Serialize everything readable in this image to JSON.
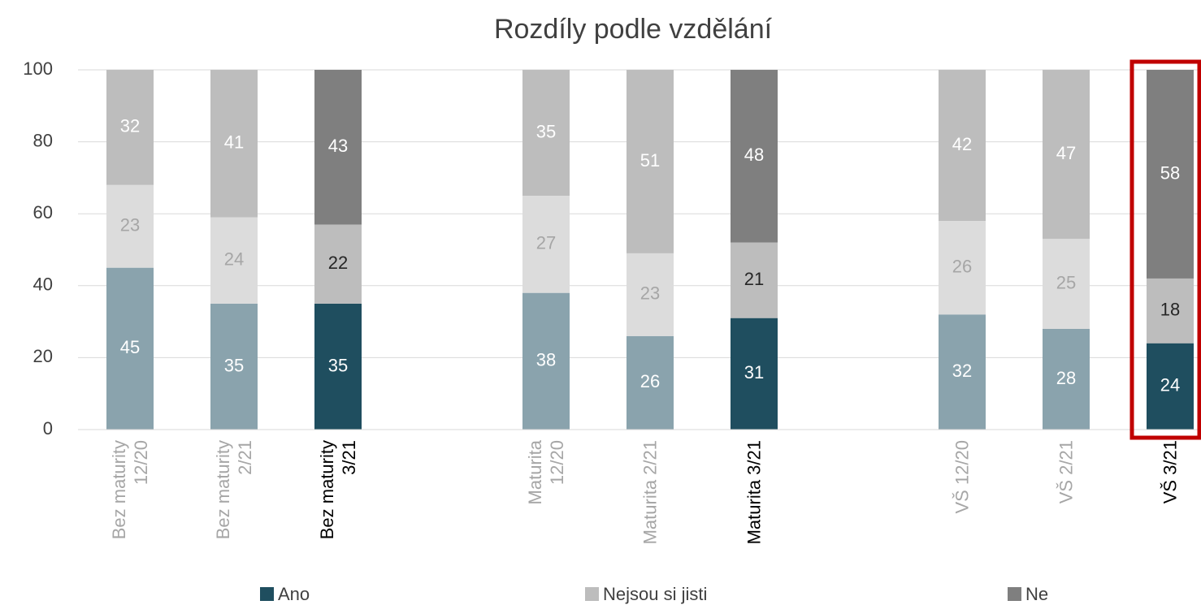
{
  "chart_data": {
    "type": "stacked_bar",
    "title": "Rozdíly podle vzdělání",
    "categories": [
      "Bez maturity 12/20",
      "Bez maturity 2/21",
      "Bez maturity 3/21",
      null,
      "Maturita 12/20",
      "Maturita 2/21",
      "Maturita 3/21",
      null,
      "VŠ 12/20",
      "VŠ 2/21",
      "VŠ 3/21"
    ],
    "series": [
      {
        "name": "Ano",
        "color": "#1f4e5f",
        "colors": [
          "#8aa3ad",
          "#8aa3ad",
          "#1f4e5f",
          null,
          "#8aa3ad",
          "#8aa3ad",
          "#1f4e5f",
          null,
          "#8aa3ad",
          "#8aa3ad",
          "#1f4e5f"
        ],
        "values": [
          45,
          35,
          35,
          null,
          38,
          26,
          31,
          null,
          32,
          28,
          24
        ]
      },
      {
        "name": "Nejsou si jisti",
        "color": "#bdbdbd",
        "colors": [
          "#dcdcdc",
          "#dcdcdc",
          "#bdbdbd",
          null,
          "#dcdcdc",
          "#dcdcdc",
          "#bdbdbd",
          null,
          "#dcdcdc",
          "#dcdcdc",
          "#bdbdbd"
        ],
        "values": [
          23,
          24,
          22,
          null,
          27,
          23,
          21,
          null,
          26,
          25,
          18
        ]
      },
      {
        "name": "Ne",
        "color": "#7f7f7f",
        "colors": [
          "#bdbdbd",
          "#bdbdbd",
          "#7f7f7f",
          null,
          "#bdbdbd",
          "#bdbdbd",
          "#7f7f7f",
          null,
          "#bdbdbd",
          "#bdbdbd",
          "#7f7f7f"
        ],
        "values": [
          32,
          41,
          43,
          null,
          35,
          51,
          48,
          null,
          42,
          47,
          58
        ]
      }
    ],
    "ylim": [
      0,
      100
    ],
    "yticks": [
      0,
      20,
      40,
      60,
      80,
      100
    ],
    "grid": true,
    "legend": "bottom"
  }
}
